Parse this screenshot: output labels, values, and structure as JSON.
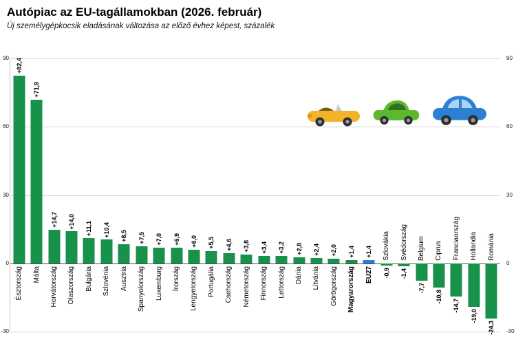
{
  "header": {
    "title": "Autópiac az EU-tagállamokban (2026. február)",
    "subtitle": "Új személygépkocsik eladásának változása az előző évhez képest, százalék"
  },
  "chart_data": {
    "type": "bar",
    "title": "Autópiac az EU-tagállamokban (2026. február)",
    "subtitle": "Új személygépkocsik eladásának változása az előző évhez képest, százalék",
    "categories": [
      "Észtország",
      "Málta",
      "Horvátország",
      "Olaszország",
      "Bulgária",
      "Szlovénia",
      "Ausztria",
      "Spanyolország",
      "Luxemburg",
      "Írország",
      "Lengyelország",
      "Portugália",
      "Csehország",
      "Németország",
      "Finnország",
      "Lettország",
      "Dánia",
      "Litvánia",
      "Görögország",
      "Magyarország",
      "EU27",
      "Szlovákia",
      "Svédország",
      "Belgium",
      "Ciprus",
      "Franciaország",
      "Hollandia",
      "Románia"
    ],
    "values": [
      82.4,
      71.9,
      14.7,
      14.0,
      11.1,
      10.4,
      8.5,
      7.5,
      7.0,
      6.9,
      6.0,
      5.5,
      4.6,
      3.8,
      3.4,
      3.2,
      2.8,
      2.4,
      2.0,
      1.4,
      1.4,
      -0.9,
      -1.4,
      -7.7,
      -10.8,
      -14.7,
      -19.0,
      -24.3
    ],
    "value_labels": [
      "+82,4",
      "+71,9",
      "+14,7",
      "+14,0",
      "+11,1",
      "+10,4",
      "+8,5",
      "+7,5",
      "+7,0",
      "+6,9",
      "+6,0",
      "+5,5",
      "+4,6",
      "+3,8",
      "+3,4",
      "+3,2",
      "+2,8",
      "+2,4",
      "+2,0",
      "+1,4",
      "+1,4",
      "-0,9",
      "-1,4",
      "-7,7",
      "-10,8",
      "-14,7",
      "-19,0",
      "-24,3"
    ],
    "bold_categories": [
      "Magyarország",
      "EU27"
    ],
    "highlight_category": "EU27",
    "colors": {
      "bar": "#18914b",
      "highlight": "#2e7fd2"
    },
    "ylim": [
      -30,
      90
    ],
    "yticks": [
      90,
      60,
      30,
      0,
      -30
    ],
    "ytick_labels": [
      "90",
      "60",
      "30",
      "0",
      "-30"
    ],
    "grid": true,
    "legend": "none"
  },
  "decor": {
    "cars": [
      {
        "name": "yellow-convertible",
        "body": "#f2b32a",
        "dark": "#7a5b16"
      },
      {
        "name": "green-car",
        "body": "#5cb82e",
        "window": "#35701c"
      },
      {
        "name": "blue-car",
        "body": "#2d7fd3",
        "window": "#aad4f5"
      }
    ]
  }
}
